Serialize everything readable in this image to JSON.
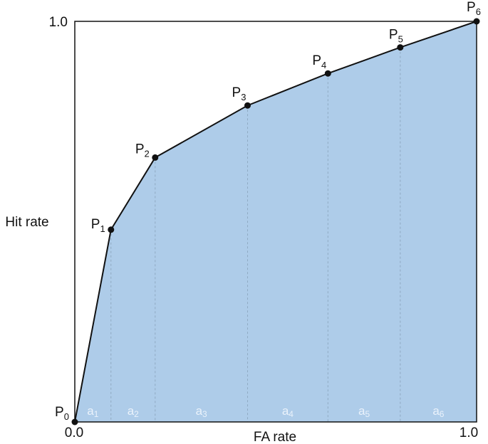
{
  "chart_data": {
    "type": "area",
    "xlabel": "FA rate",
    "ylabel": "Hit rate",
    "xlim": [
      0,
      1
    ],
    "ylim": [
      0,
      1
    ],
    "x_ticks": [
      "0.0",
      "1.0"
    ],
    "y_ticks": [
      "1.0"
    ],
    "grid": false,
    "points": [
      {
        "label": "P",
        "sub": "0",
        "x": 0.0,
        "y": 0.0
      },
      {
        "label": "P",
        "sub": "1",
        "x": 0.09,
        "y": 0.48
      },
      {
        "label": "P",
        "sub": "2",
        "x": 0.2,
        "y": 0.66
      },
      {
        "label": "P",
        "sub": "3",
        "x": 0.43,
        "y": 0.79
      },
      {
        "label": "P",
        "sub": "4",
        "x": 0.63,
        "y": 0.87
      },
      {
        "label": "P",
        "sub": "5",
        "x": 0.81,
        "y": 0.935
      },
      {
        "label": "P",
        "sub": "6",
        "x": 1.0,
        "y": 1.0
      }
    ],
    "areas": [
      {
        "label": "a",
        "sub": "1"
      },
      {
        "label": "a",
        "sub": "2"
      },
      {
        "label": "a",
        "sub": "3"
      },
      {
        "label": "a",
        "sub": "4"
      },
      {
        "label": "a",
        "sub": "5"
      },
      {
        "label": "a",
        "sub": "6"
      }
    ],
    "colors": {
      "fill": "#aecce9",
      "curve": "#111111",
      "divider": "#8fa9c2",
      "frame": "#111111"
    }
  }
}
